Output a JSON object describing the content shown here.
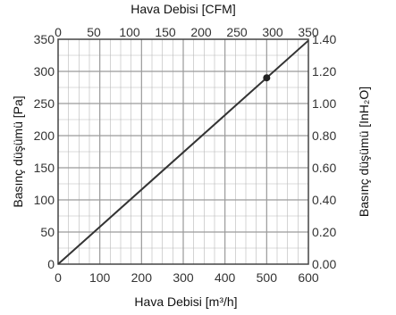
{
  "chart_data": {
    "type": "line",
    "title": "",
    "xlabel": "Hava Debisi [m³/h]",
    "ylabel": "Basınç düşümü [Pa]",
    "x2label": "Hava Debisi [CFM]",
    "y2label": "Basınç düşümü  [InH₂O]",
    "xlim": [
      0,
      600
    ],
    "ylim": [
      0,
      350
    ],
    "x2lim": [
      0,
      350
    ],
    "y2lim": [
      0,
      1.4
    ],
    "x_ticks": [
      "0",
      "100",
      "200",
      "300",
      "400",
      "500",
      "600"
    ],
    "y_ticks": [
      "0",
      "50",
      "100",
      "150",
      "200",
      "250",
      "300",
      "350"
    ],
    "x2_ticks": [
      "0",
      "50",
      "100",
      "150",
      "200",
      "250",
      "300",
      "350"
    ],
    "y2_ticks": [
      "0.00",
      "0.20",
      "0.40",
      "0.60",
      "0.80",
      "1.00",
      "1.20",
      "1.40"
    ],
    "grid": true,
    "series": [
      {
        "x": [
          0,
          600
        ],
        "y": [
          0,
          348
        ]
      }
    ],
    "marker": {
      "x": 500,
      "y": 290
    },
    "colors": {
      "line": "#333333",
      "grid": "#b8b8b8",
      "marker": "#222222"
    }
  }
}
